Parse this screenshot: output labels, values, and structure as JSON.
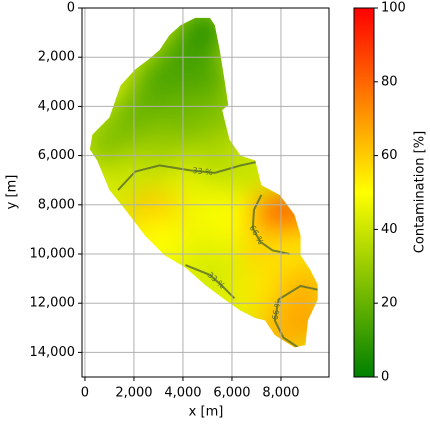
{
  "chart_data": {
    "type": "contour-map",
    "xlabel": "x [m]",
    "ylabel": "y [m]",
    "colorbar_label": "Contamination [%]",
    "xlim": [
      -120,
      9960
    ],
    "ylim": [
      15000,
      0
    ],
    "xticks": [
      0,
      {
        "value": 2000,
        "label": "2,000"
      },
      {
        "value": 4000,
        "label": "4,000"
      },
      {
        "value": 6000,
        "label": "6,000"
      },
      {
        "value": 8000,
        "label": "8,000"
      }
    ],
    "yticks": [
      0,
      {
        "value": 2000,
        "label": "2,000"
      },
      {
        "value": 4000,
        "label": "4,000"
      },
      {
        "value": 6000,
        "label": "6,000"
      },
      {
        "value": 8000,
        "label": "8,000"
      },
      {
        "value": 10000,
        "label": "10,000"
      },
      {
        "value": 12000,
        "label": "12,000"
      },
      {
        "value": 14000,
        "label": "14,000"
      }
    ],
    "clim": [
      0,
      100
    ],
    "cticks": [
      0,
      20,
      40,
      60,
      80,
      100
    ],
    "colormap": [
      "#008000",
      "#ffff00",
      "#ff0000"
    ],
    "grid": true,
    "contour_color": "#556b2f",
    "boundary": {
      "x": [
        4500,
        5100,
        5300,
        5500,
        5700,
        5850,
        5600,
        5900,
        6350,
        6950,
        7200,
        7950,
        8550,
        8800,
        8800,
        9200,
        9500,
        9500,
        9100,
        9000,
        8550,
        7750,
        7350,
        6950,
        6350,
        5700,
        4900,
        4100,
        3250,
        2450,
        1650,
        1000,
        500,
        200,
        300,
        1000,
        1450,
        2050,
        2650,
        3050,
        3450,
        3900
      ],
      "y": [
        400,
        400,
        700,
        1700,
        2950,
        3950,
        4150,
        5350,
        6000,
        6200,
        7200,
        7600,
        8400,
        9250,
        10050,
        10650,
        11250,
        11850,
        12700,
        13700,
        13800,
        13300,
        12700,
        12600,
        12300,
        11850,
        11250,
        10550,
        10050,
        9250,
        8200,
        7400,
        6200,
        5750,
        5150,
        4450,
        3150,
        2500,
        2050,
        1700,
        1100,
        700
      ]
    },
    "samples": {
      "x": [
        4800,
        4000,
        3000,
        5000,
        2000,
        4000,
        5500,
        1000,
        3000,
        5500,
        6500,
        2000,
        4000,
        2800,
        5000,
        6500,
        7800,
        8400,
        7500,
        8500,
        4000,
        5500,
        3000,
        6500,
        7500,
        8700,
        9000,
        8000,
        5000
      ],
      "y": [
        1000,
        2000,
        3000,
        3000,
        4500,
        4500,
        4500,
        5500,
        5800,
        6000,
        6500,
        7000,
        7500,
        8500,
        8500,
        8500,
        8500,
        8800,
        10000,
        10000,
        10000,
        10500,
        9500,
        11500,
        11500,
        12500,
        11500,
        13300,
        11000
      ],
      "values": [
        5,
        12,
        15,
        15,
        20,
        22,
        25,
        25,
        30,
        33,
        38,
        40,
        45,
        62,
        48,
        50,
        80,
        85,
        60,
        55,
        45,
        45,
        50,
        45,
        55,
        85,
        65,
        65,
        42
      ]
    },
    "contours": [
      {
        "level": 33,
        "label": "33 %",
        "x": [
          1350,
          2050,
          3050,
          4300,
          5300,
          6350,
          7050
        ],
        "y": [
          7400,
          6650,
          6400,
          6600,
          6700,
          6400,
          6250
        ]
      },
      {
        "level": 66,
        "label": "66 %",
        "x": [
          7200,
          6900,
          6850,
          7150,
          7650,
          8350
        ],
        "y": [
          7600,
          8200,
          8950,
          9500,
          9850,
          10000
        ]
      },
      {
        "level": 66,
        "label": "66 %",
        "x": [
          9500,
          8800,
          7900,
          7750,
          8100,
          8700
        ],
        "y": [
          11450,
          11300,
          11850,
          12700,
          13400,
          13800
        ]
      },
      {
        "level": 33,
        "label": "33 %",
        "x": [
          4100,
          5100,
          5600,
          6100
        ],
        "y": [
          10450,
          10850,
          11300,
          11800
        ]
      }
    ]
  }
}
